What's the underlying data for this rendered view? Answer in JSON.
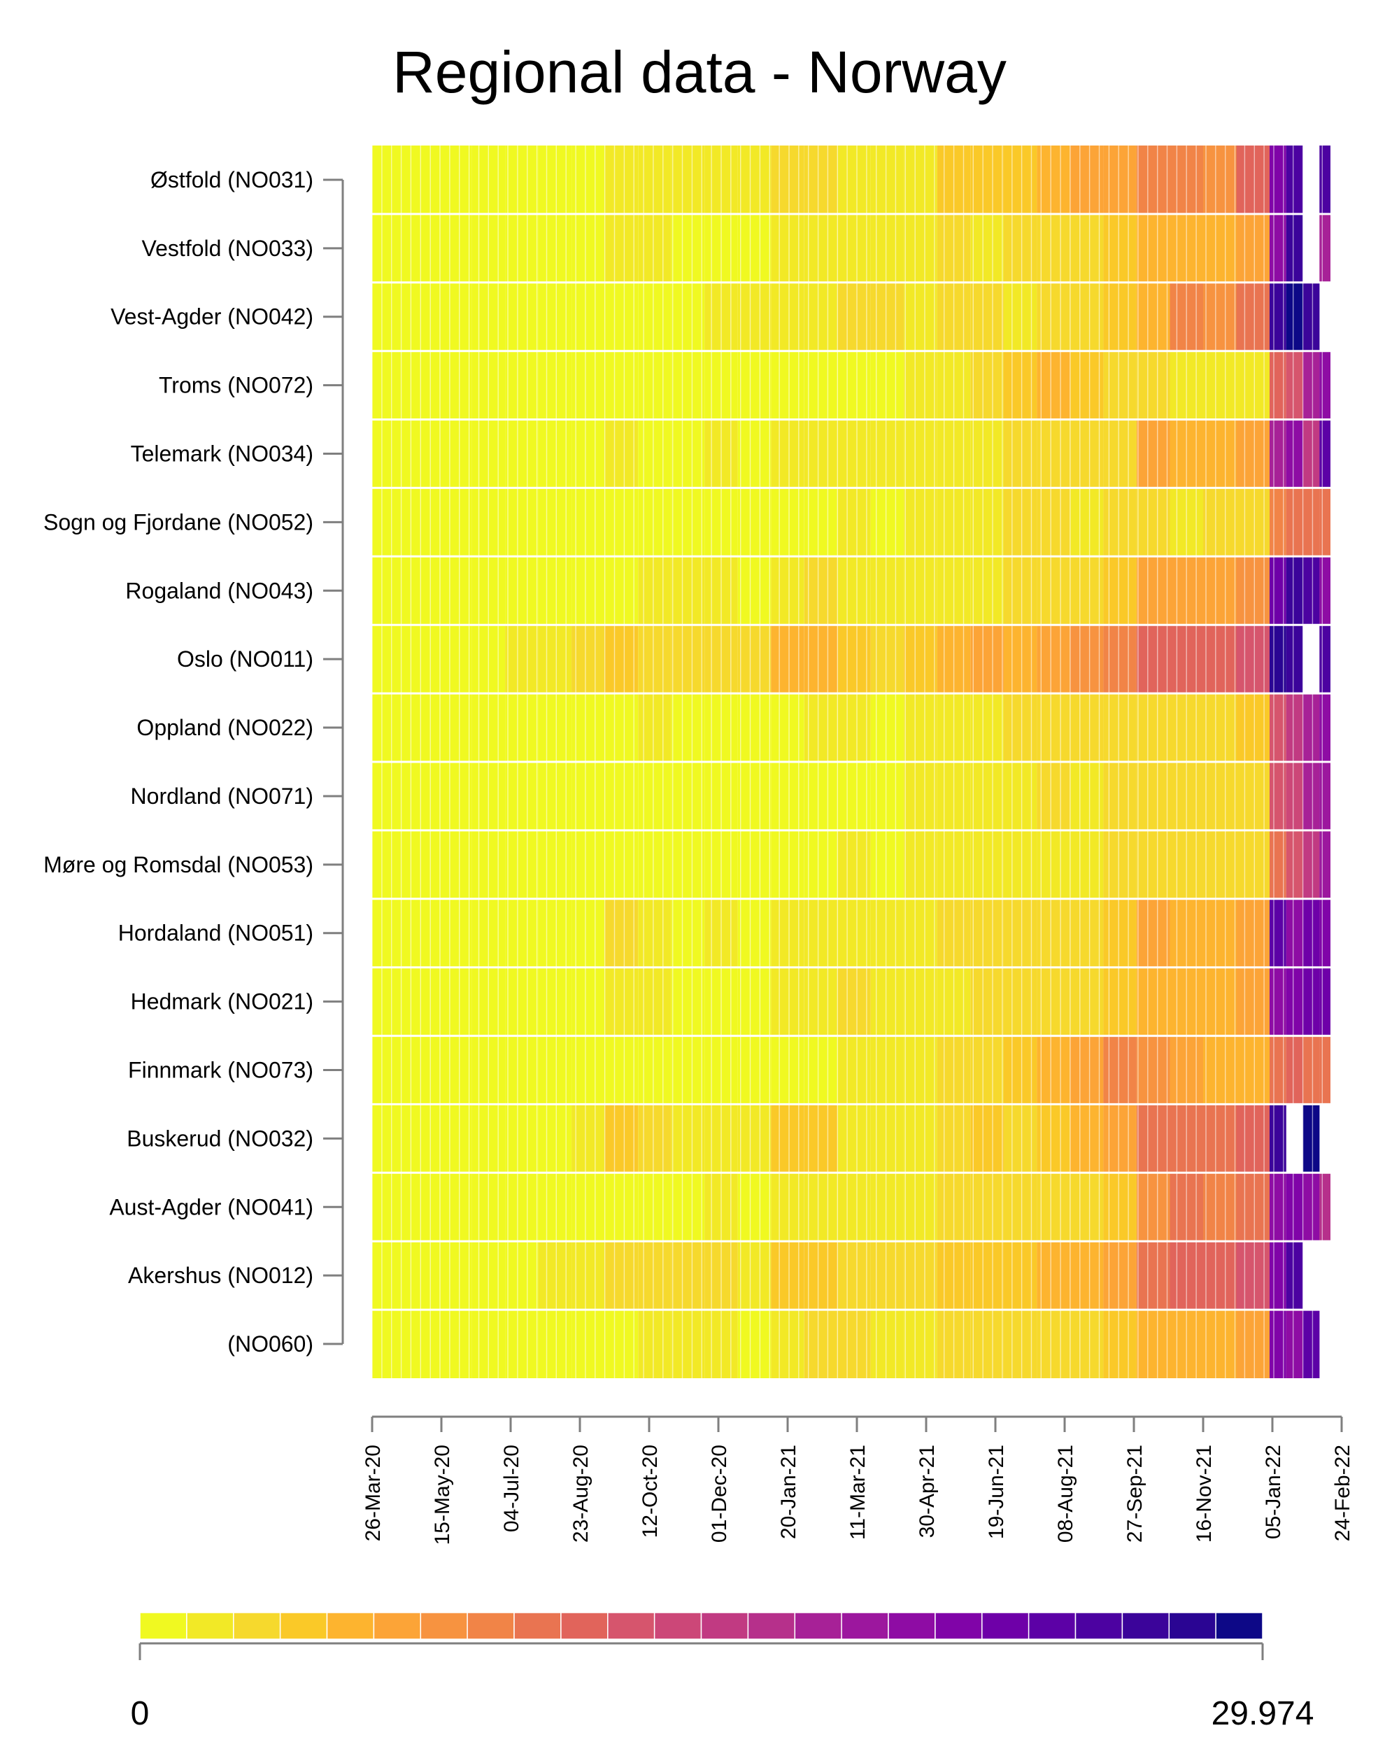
{
  "chart_data": {
    "type": "heatmap",
    "title": "Regional data - Norway",
    "rows": [
      "Østfold (NO031)",
      "Vestfold (NO033)",
      "Vest-Agder (NO042)",
      "Troms (NO072)",
      "Telemark (NO034)",
      "Sogn og Fjordane (NO052)",
      "Rogaland (NO043)",
      "Oslo (NO011)",
      "Oppland (NO022)",
      "Nordland (NO071)",
      "Møre og Romsdal (NO053)",
      "Hordaland (NO051)",
      "Hedmark (NO021)",
      "Finnmark (NO073)",
      "Buskerud (NO032)",
      "Aust-Agder (NO041)",
      "Akershus (NO012)",
      "(NO060)"
    ],
    "x_start": "26-Mar-20",
    "x_ticks": [
      "26-Mar-20",
      "15-May-20",
      "04-Jul-20",
      "23-Aug-20",
      "12-Oct-20",
      "01-Dec-20",
      "20-Jan-21",
      "11-Mar-21",
      "30-Apr-21",
      "19-Jun-21",
      "08-Aug-21",
      "27-Sep-21",
      "16-Nov-21",
      "05-Jan-22",
      "24-Feb-22"
    ],
    "color_min": 0,
    "color_max": 29.974,
    "legend_min_label": "0",
    "legend_max_label": "29.974",
    "legend_position": "bottom",
    "colors": [
      "#f0f921",
      "#f2e926",
      "#f6d92d",
      "#fac928",
      "#fdb42f",
      "#fca437",
      "#f79340",
      "#f18447",
      "#e97451",
      "#e1645b",
      "#d6556d",
      "#cc4778",
      "#c13a82",
      "#b6308b",
      "#a72197",
      "#9c179e",
      "#8e0ca4",
      "#8004a8",
      "#6e00a8",
      "#5c01a6",
      "#4c02a1",
      "#3b049a",
      "#2a0593",
      "#0d0887"
    ],
    "series": [
      {
        "name": "Østfold (NO031)",
        "values": [
          0.4,
          0.3,
          0.4,
          0.6,
          0.8,
          0.6,
          0.5,
          2.2,
          1.6,
          1.8,
          1.6,
          1.4,
          3.2,
          3.4,
          2.4,
          1.8,
          2.4,
          4.2,
          4.8,
          4.6,
          5.8,
          6.4,
          7.4,
          9.8,
          8.8,
          8.4,
          11.8,
          22.0,
          25.0,
          null,
          26.0,
          17.0
        ]
      },
      {
        "name": "Vestfold (NO033)",
        "values": [
          0.2,
          0.2,
          0.2,
          0.4,
          0.4,
          0.4,
          0.4,
          1.4,
          1.4,
          1.2,
          1.2,
          1.0,
          1.6,
          2.4,
          2.2,
          1.6,
          2.2,
          2.6,
          2.4,
          2.6,
          3.6,
          3.2,
          4.2,
          5.8,
          5.6,
          5.0,
          7.2,
          21.0,
          27.0,
          null,
          18.0,
          14.0
        ]
      },
      {
        "name": "Vest-Agder (NO042)",
        "values": [
          0.2,
          0.2,
          0.2,
          0.4,
          0.4,
          0.6,
          0.6,
          0.8,
          0.8,
          1.2,
          1.4,
          1.4,
          1.8,
          2.2,
          3.2,
          2.6,
          2.4,
          2.8,
          3.4,
          2.4,
          3.4,
          3.6,
          4.4,
          6.2,
          8.8,
          8.2,
          10.4,
          27.0,
          29.0,
          27.0,
          null,
          null
        ]
      },
      {
        "name": "Troms (NO072)",
        "values": [
          0.2,
          0.2,
          0.2,
          0.2,
          0.2,
          0.4,
          0.4,
          0.4,
          0.6,
          0.8,
          0.8,
          1.0,
          1.0,
          1.0,
          1.2,
          1.0,
          1.4,
          2.4,
          3.4,
          4.8,
          5.4,
          3.8,
          2.8,
          2.6,
          2.2,
          2.0,
          2.4,
          12.0,
          13.0,
          18.0,
          21.0,
          23.0
        ]
      },
      {
        "name": "Telemark (NO034)",
        "values": [
          0.2,
          0.2,
          0.2,
          0.4,
          0.4,
          0.4,
          0.8,
          1.8,
          1.2,
          1.2,
          1.4,
          1.0,
          2.2,
          2.4,
          1.8,
          1.6,
          1.8,
          2.2,
          2.0,
          2.6,
          3.0,
          2.8,
          3.6,
          6.8,
          5.8,
          5.4,
          7.0,
          18.0,
          20.0,
          16.0,
          24.0,
          26.0
        ]
      },
      {
        "name": "Sogn og Fjordane (NO052)",
        "values": [
          0.2,
          0.2,
          0.2,
          0.2,
          0.2,
          0.4,
          0.4,
          0.4,
          0.6,
          0.6,
          0.8,
          0.8,
          1.0,
          1.2,
          1.4,
          1.2,
          1.4,
          2.2,
          2.4,
          2.6,
          2.8,
          2.4,
          2.8,
          2.6,
          2.4,
          2.8,
          3.2,
          9.0,
          10.0,
          11.0,
          11.0,
          12.0
        ]
      },
      {
        "name": "Rogaland (NO043)",
        "values": [
          0.2,
          0.2,
          0.2,
          0.4,
          0.4,
          0.6,
          0.6,
          1.0,
          1.4,
          1.4,
          1.6,
          1.2,
          2.0,
          2.6,
          2.2,
          1.6,
          2.2,
          2.4,
          2.4,
          3.0,
          3.4,
          3.6,
          4.8,
          6.4,
          6.8,
          6.4,
          7.6,
          23.0,
          27.0,
          25.0,
          21.0,
          24.0
        ]
      },
      {
        "name": "Oslo (NO011)",
        "values": [
          0.8,
          0.6,
          0.6,
          1.2,
          1.8,
          2.4,
          2.6,
          4.6,
          3.6,
          3.4,
          3.4,
          3.0,
          5.8,
          6.2,
          4.4,
          3.4,
          4.0,
          5.8,
          6.4,
          5.2,
          7.0,
          7.6,
          9.0,
          11.6,
          12.4,
          11.8,
          13.6,
          28.0,
          27.0,
          null,
          25.0,
          21.0
        ]
      },
      {
        "name": "Oppland (NO022)",
        "values": [
          0.2,
          0.2,
          0.2,
          0.2,
          0.4,
          0.4,
          0.6,
          1.0,
          1.4,
          1.2,
          1.0,
          0.8,
          1.2,
          1.6,
          1.6,
          1.2,
          1.6,
          2.0,
          2.2,
          2.6,
          2.8,
          2.6,
          3.0,
          3.4,
          3.6,
          3.2,
          3.8,
          13.0,
          16.0,
          18.0,
          21.0,
          21.0
        ]
      },
      {
        "name": "Nordland (NO071)",
        "values": [
          0.2,
          0.2,
          0.2,
          0.2,
          0.2,
          0.2,
          0.4,
          0.4,
          0.6,
          0.6,
          0.8,
          0.8,
          1.0,
          1.0,
          1.2,
          1.2,
          1.4,
          1.8,
          2.2,
          2.4,
          2.6,
          2.2,
          2.8,
          3.0,
          2.8,
          2.6,
          2.8,
          13.0,
          14.0,
          18.0,
          19.0,
          18.0
        ]
      },
      {
        "name": "Møre og Romsdal (NO053)",
        "values": [
          0.2,
          0.2,
          0.2,
          0.2,
          0.4,
          0.4,
          0.4,
          0.6,
          0.8,
          0.8,
          0.8,
          0.8,
          1.0,
          1.2,
          1.4,
          1.2,
          1.6,
          1.8,
          2.2,
          2.4,
          2.4,
          2.4,
          2.8,
          3.2,
          3.0,
          2.8,
          3.4,
          11.0,
          13.0,
          16.0,
          19.0,
          29.0
        ]
      },
      {
        "name": "Hordaland (NO051)",
        "values": [
          0.2,
          0.2,
          0.4,
          0.4,
          0.6,
          0.6,
          0.8,
          2.8,
          1.6,
          1.2,
          1.4,
          1.2,
          2.0,
          2.4,
          2.2,
          1.8,
          2.2,
          2.6,
          2.6,
          3.2,
          3.6,
          3.6,
          4.6,
          6.6,
          6.2,
          5.6,
          7.2,
          24.0,
          21.0,
          23.0,
          22.0,
          23.0
        ]
      },
      {
        "name": "Hedmark (NO021)",
        "values": [
          0.2,
          0.2,
          0.2,
          0.4,
          0.4,
          0.4,
          0.6,
          1.6,
          1.4,
          1.2,
          1.2,
          1.0,
          1.8,
          2.2,
          2.6,
          1.8,
          2.0,
          2.4,
          2.6,
          2.8,
          3.2,
          3.2,
          4.4,
          6.2,
          6.0,
          5.2,
          6.4,
          20.0,
          22.0,
          23.0,
          23.0,
          23.0
        ]
      },
      {
        "name": "Finnmark (NO073)",
        "values": [
          0.2,
          0.2,
          0.2,
          0.2,
          0.2,
          0.4,
          0.4,
          0.6,
          0.6,
          0.8,
          0.8,
          0.8,
          1.2,
          1.2,
          2.2,
          2.2,
          2.0,
          2.6,
          2.6,
          4.6,
          5.6,
          7.2,
          9.6,
          8.2,
          6.4,
          5.6,
          5.8,
          10.0,
          12.0,
          10.0,
          11.0,
          13.0
        ]
      },
      {
        "name": "Buskerud (NO032)",
        "values": [
          0.4,
          0.4,
          0.4,
          0.6,
          0.8,
          1.0,
          1.4,
          3.8,
          2.6,
          2.0,
          1.8,
          1.6,
          3.8,
          3.8,
          2.4,
          2.0,
          2.2,
          3.6,
          4.2,
          3.4,
          4.6,
          5.0,
          6.4,
          10.4,
          10.8,
          10.2,
          12.0,
          27.0,
          null,
          29.0,
          null,
          29.0
        ]
      },
      {
        "name": "Aust-Agder (NO041)",
        "values": [
          0.2,
          0.2,
          0.2,
          0.4,
          0.4,
          0.4,
          0.6,
          1.2,
          1.2,
          1.2,
          1.4,
          1.0,
          1.8,
          2.2,
          1.8,
          1.6,
          2.0,
          2.6,
          2.6,
          2.8,
          3.2,
          3.6,
          4.8,
          8.6,
          10.4,
          9.2,
          11.0,
          20.0,
          22.0,
          20.0,
          17.0,
          14.0
        ]
      },
      {
        "name": "Akershus (NO012)",
        "values": [
          0.6,
          0.4,
          0.4,
          0.8,
          1.2,
          1.6,
          1.8,
          3.4,
          3.0,
          2.6,
          2.6,
          2.4,
          4.6,
          4.6,
          3.4,
          2.6,
          3.0,
          4.0,
          4.4,
          4.0,
          5.2,
          5.8,
          7.4,
          11.0,
          12.2,
          11.6,
          12.6,
          22.0,
          26.0,
          null,
          null,
          29.0
        ]
      },
      {
        "name": "(NO060)",
        "values": [
          0.2,
          0.2,
          0.2,
          0.4,
          0.4,
          0.4,
          0.6,
          1.0,
          1.4,
          1.6,
          1.6,
          1.2,
          2.0,
          3.2,
          2.6,
          2.0,
          2.2,
          2.8,
          2.6,
          3.2,
          3.6,
          3.6,
          4.4,
          6.0,
          6.2,
          5.8,
          7.4,
          22.0,
          20.0,
          24.0,
          null,
          16.0
        ]
      }
    ]
  }
}
